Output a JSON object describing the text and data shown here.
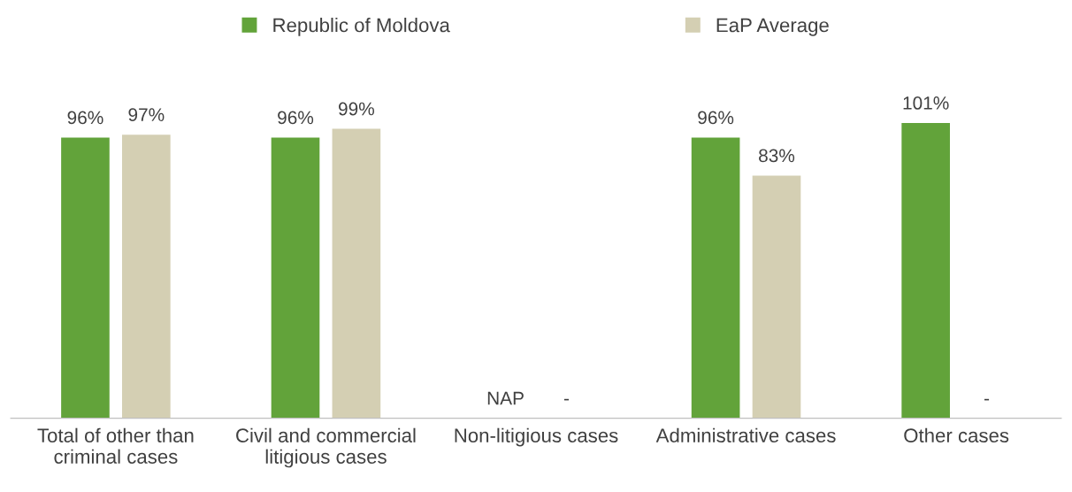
{
  "chart_data": {
    "type": "bar",
    "categories": [
      "Total of other than\ncriminal cases",
      "Civil and commercial\nlitigious cases",
      "Non-litigious cases",
      "Administrative cases",
      "Other cases"
    ],
    "series": [
      {
        "name": "Republic of Moldova",
        "color": "#62a33a",
        "values": [
          96,
          96,
          null,
          96,
          101
        ],
        "value_labels": [
          "96%",
          "96%",
          "NAP",
          "96%",
          "101%"
        ]
      },
      {
        "name": "EaP Average",
        "color": "#d4cfb3",
        "values": [
          97,
          99,
          null,
          83,
          null
        ],
        "value_labels": [
          "97%",
          "99%",
          "-",
          "83%",
          "-"
        ]
      }
    ],
    "tick_labels": "x",
    "grid": false,
    "legend": "top"
  }
}
